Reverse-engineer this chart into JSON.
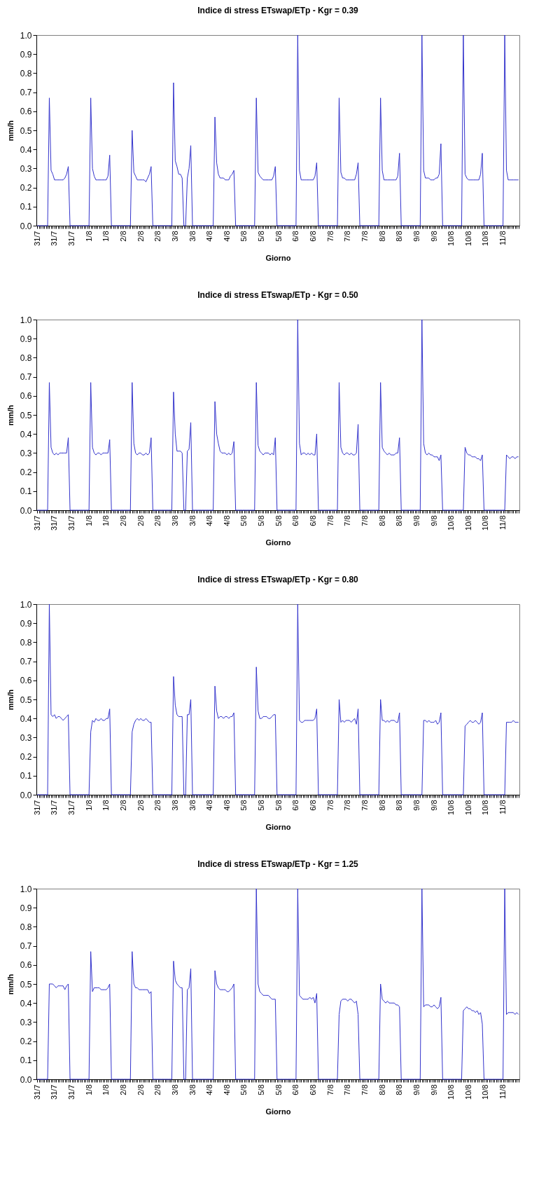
{
  "chart_data": [
    {
      "type": "line",
      "title": "Indice di stress ETswap/ETp - Kgr = 0.39",
      "xlabel": "Giorno",
      "ylabel": "mm/h",
      "ylim": [
        0,
        1
      ],
      "yticks": [
        {
          "value": 0,
          "label": "0.0"
        },
        {
          "value": 0.1,
          "label": "0.1"
        },
        {
          "value": 0.2,
          "label": "0.2"
        },
        {
          "value": 0.3,
          "label": "0.3"
        },
        {
          "value": 0.4,
          "label": "0.4"
        },
        {
          "value": 0.5,
          "label": "0.5"
        },
        {
          "value": 0.6,
          "label": "0.6"
        },
        {
          "value": 0.7,
          "label": "0.7"
        },
        {
          "value": 0.8,
          "label": "0.8"
        },
        {
          "value": 0.9,
          "label": "0.9"
        },
        {
          "value": 1,
          "label": "1.0"
        }
      ],
      "categories": [
        "31/7",
        null,
        null,
        null,
        null,
        null,
        null,
        null,
        null,
        null,
        "31/7",
        null,
        null,
        null,
        null,
        null,
        null,
        null,
        null,
        null,
        "31/7",
        null,
        null,
        null,
        null,
        null,
        null,
        null,
        null,
        null,
        "1/8",
        null,
        null,
        null,
        null,
        null,
        null,
        null,
        null,
        null,
        "1/8",
        null,
        null,
        null,
        null,
        null,
        null,
        null,
        null,
        null,
        "2/8",
        null,
        null,
        null,
        null,
        null,
        null,
        null,
        null,
        null,
        "2/8",
        null,
        null,
        null,
        null,
        null,
        null,
        null,
        null,
        null,
        "2/8",
        null,
        null,
        null,
        null,
        null,
        null,
        null,
        null,
        null,
        "3/8",
        null,
        null,
        null,
        null,
        null,
        null,
        null,
        null,
        null,
        "3/8",
        null,
        null,
        null,
        null,
        null,
        null,
        null,
        null,
        null,
        "4/8",
        null,
        null,
        null,
        null,
        null,
        null,
        null,
        null,
        null,
        "4/8",
        null,
        null,
        null,
        null,
        null,
        null,
        null,
        null,
        null,
        "5/8",
        null,
        null,
        null,
        null,
        null,
        null,
        null,
        null,
        null,
        "5/8",
        null,
        null,
        null,
        null,
        null,
        null,
        null,
        null,
        null,
        "5/8",
        null,
        null,
        null,
        null,
        null,
        null,
        null,
        null,
        null,
        "6/8",
        null,
        null,
        null,
        null,
        null,
        null,
        null,
        null,
        null,
        "6/8",
        null,
        null,
        null,
        null,
        null,
        null,
        null,
        null,
        null,
        "7/8",
        null,
        null,
        null,
        null,
        null,
        null,
        null,
        null,
        null,
        "7/8",
        null,
        null,
        null,
        null,
        null,
        null,
        null,
        null,
        null,
        "7/8",
        null,
        null,
        null,
        null,
        null,
        null,
        null,
        null,
        null,
        "8/8",
        null,
        null,
        null,
        null,
        null,
        null,
        null,
        null,
        null,
        "8/8",
        null,
        null,
        null,
        null,
        null,
        null,
        null,
        null,
        null,
        "9/8",
        null,
        null,
        null,
        null,
        null,
        null,
        null,
        null,
        null,
        "9/8",
        null,
        null,
        null,
        null,
        null,
        null,
        null,
        null,
        null,
        "10/8",
        null,
        null,
        null,
        null,
        null,
        null,
        null,
        null,
        null,
        "10/8",
        null,
        null,
        null,
        null,
        null,
        null,
        null,
        null,
        null,
        "10/8",
        null,
        null,
        null,
        null,
        null,
        null,
        null,
        null,
        null,
        "11/8",
        null,
        null,
        null,
        null,
        null,
        null,
        null,
        null,
        null
      ],
      "series": [
        {
          "color": "#3333cc",
          "values": [
            0,
            0,
            0,
            0,
            0,
            0,
            0,
            0.67,
            0.29,
            0.27,
            0.24,
            0.24,
            0.24,
            0.24,
            0.24,
            0.24,
            0.25,
            0.27,
            0.31,
            0,
            0,
            0,
            0,
            0,
            0,
            0,
            0,
            0,
            0,
            0,
            0,
            0.67,
            0.3,
            0.26,
            0.24,
            0.24,
            0.24,
            0.24,
            0.24,
            0.24,
            0.24,
            0.26,
            0.37,
            0,
            0,
            0,
            0,
            0,
            0,
            0,
            0,
            0,
            0,
            0,
            0,
            0.5,
            0.28,
            0.26,
            0.24,
            0.24,
            0.24,
            0.24,
            0.24,
            0.23,
            0.25,
            0.27,
            0.31,
            0,
            0,
            0,
            0,
            0,
            0,
            0,
            0,
            0,
            0,
            0,
            0,
            0.75,
            0.34,
            0.31,
            0.27,
            0.27,
            0.25,
            0,
            0,
            0.25,
            0.3,
            0.42,
            0,
            0,
            0,
            0,
            0,
            0,
            0,
            0,
            0,
            0,
            0,
            0,
            0,
            0.57,
            0.33,
            0.27,
            0.25,
            0.25,
            0.25,
            0.24,
            0.24,
            0.24,
            0.26,
            0.27,
            0.29,
            0,
            0,
            0,
            0,
            0,
            0,
            0,
            0,
            0,
            0,
            0,
            0,
            0.67,
            0.28,
            0.26,
            0.25,
            0.24,
            0.24,
            0.24,
            0.24,
            0.24,
            0.24,
            0.26,
            0.31,
            0,
            0,
            0,
            0,
            0,
            0,
            0,
            0,
            0,
            0,
            0,
            0,
            1,
            0.29,
            0.24,
            0.24,
            0.24,
            0.24,
            0.24,
            0.24,
            0.24,
            0.24,
            0.26,
            0.33,
            0,
            0,
            0,
            0,
            0,
            0,
            0,
            0,
            0,
            0,
            0,
            0,
            0.67,
            0.28,
            0.25,
            0.25,
            0.24,
            0.24,
            0.24,
            0.24,
            0.24,
            0.24,
            0.27,
            0.33,
            0,
            0,
            0,
            0,
            0,
            0,
            0,
            0,
            0,
            0,
            0,
            0,
            0.67,
            0.29,
            0.24,
            0.24,
            0.24,
            0.24,
            0.24,
            0.24,
            0.24,
            0.24,
            0.26,
            0.38,
            0,
            0,
            0,
            0,
            0,
            0,
            0,
            0,
            0,
            0,
            0,
            0,
            1,
            0.29,
            0.25,
            0.25,
            0.25,
            0.24,
            0.24,
            0.24,
            0.25,
            0.25,
            0.27,
            0.43,
            0,
            0,
            0,
            0,
            0,
            0,
            0,
            0,
            0,
            0,
            0,
            0,
            1,
            0.27,
            0.25,
            0.24,
            0.24,
            0.24,
            0.24,
            0.24,
            0.24,
            0.24,
            0.27,
            0.38,
            0,
            0,
            0,
            0,
            0,
            0,
            0,
            0,
            0,
            0,
            0,
            0,
            1,
            0.29,
            0.24,
            0.24,
            0.24,
            0.24,
            0.24,
            0.24,
            0.24
          ]
        }
      ]
    },
    {
      "type": "line",
      "title": "Indice di stress ETswap/ETp - Kgr = 0.50",
      "xlabel": "Giorno",
      "ylabel": "mm/h",
      "ylim": [
        0,
        1
      ],
      "yticks": [
        {
          "value": 0,
          "label": "0.0"
        },
        {
          "value": 0.1,
          "label": "0.1"
        },
        {
          "value": 0.2,
          "label": "0.2"
        },
        {
          "value": 0.3,
          "label": "0.3"
        },
        {
          "value": 0.4,
          "label": "0.4"
        },
        {
          "value": 0.5,
          "label": "0.5"
        },
        {
          "value": 0.6,
          "label": "0.6"
        },
        {
          "value": 0.7,
          "label": "0.7"
        },
        {
          "value": 0.8,
          "label": "0.8"
        },
        {
          "value": 0.9,
          "label": "0.9"
        },
        {
          "value": 1,
          "label": "1.0"
        }
      ],
      "categories": [
        "31/7",
        null,
        null,
        null,
        null,
        null,
        null,
        null,
        null,
        null,
        "31/7",
        null,
        null,
        null,
        null,
        null,
        null,
        null,
        null,
        null,
        "31/7",
        null,
        null,
        null,
        null,
        null,
        null,
        null,
        null,
        null,
        "1/8",
        null,
        null,
        null,
        null,
        null,
        null,
        null,
        null,
        null,
        "1/8",
        null,
        null,
        null,
        null,
        null,
        null,
        null,
        null,
        null,
        "2/8",
        null,
        null,
        null,
        null,
        null,
        null,
        null,
        null,
        null,
        "2/8",
        null,
        null,
        null,
        null,
        null,
        null,
        null,
        null,
        null,
        "2/8",
        null,
        null,
        null,
        null,
        null,
        null,
        null,
        null,
        null,
        "3/8",
        null,
        null,
        null,
        null,
        null,
        null,
        null,
        null,
        null,
        "3/8",
        null,
        null,
        null,
        null,
        null,
        null,
        null,
        null,
        null,
        "4/8",
        null,
        null,
        null,
        null,
        null,
        null,
        null,
        null,
        null,
        "4/8",
        null,
        null,
        null,
        null,
        null,
        null,
        null,
        null,
        null,
        "5/8",
        null,
        null,
        null,
        null,
        null,
        null,
        null,
        null,
        null,
        "5/8",
        null,
        null,
        null,
        null,
        null,
        null,
        null,
        null,
        null,
        "5/8",
        null,
        null,
        null,
        null,
        null,
        null,
        null,
        null,
        null,
        "6/8",
        null,
        null,
        null,
        null,
        null,
        null,
        null,
        null,
        null,
        "6/8",
        null,
        null,
        null,
        null,
        null,
        null,
        null,
        null,
        null,
        "7/8",
        null,
        null,
        null,
        null,
        null,
        null,
        null,
        null,
        null,
        "7/8",
        null,
        null,
        null,
        null,
        null,
        null,
        null,
        null,
        null,
        "7/8",
        null,
        null,
        null,
        null,
        null,
        null,
        null,
        null,
        null,
        "8/8",
        null,
        null,
        null,
        null,
        null,
        null,
        null,
        null,
        null,
        "8/8",
        null,
        null,
        null,
        null,
        null,
        null,
        null,
        null,
        null,
        "9/8",
        null,
        null,
        null,
        null,
        null,
        null,
        null,
        null,
        null,
        "9/8",
        null,
        null,
        null,
        null,
        null,
        null,
        null,
        null,
        null,
        "10/8",
        null,
        null,
        null,
        null,
        null,
        null,
        null,
        null,
        null,
        "10/8",
        null,
        null,
        null,
        null,
        null,
        null,
        null,
        null,
        null,
        "10/8",
        null,
        null,
        null,
        null,
        null,
        null,
        null,
        null,
        null,
        "11/8",
        null,
        null,
        null,
        null,
        null,
        null,
        null,
        null,
        null
      ],
      "series": [
        {
          "color": "#3333cc",
          "values": [
            0,
            0,
            0,
            0,
            0,
            0,
            0,
            0.67,
            0.33,
            0.3,
            0.29,
            0.3,
            0.29,
            0.3,
            0.3,
            0.3,
            0.3,
            0.3,
            0.38,
            0,
            0,
            0,
            0,
            0,
            0,
            0,
            0,
            0,
            0,
            0,
            0,
            0.67,
            0.33,
            0.3,
            0.29,
            0.3,
            0.3,
            0.29,
            0.3,
            0.3,
            0.3,
            0.3,
            0.37,
            0,
            0,
            0,
            0,
            0,
            0,
            0,
            0,
            0,
            0,
            0,
            0,
            0.67,
            0.35,
            0.3,
            0.29,
            0.3,
            0.3,
            0.29,
            0.29,
            0.3,
            0.29,
            0.3,
            0.38,
            0,
            0,
            0,
            0,
            0,
            0,
            0,
            0,
            0,
            0,
            0,
            0,
            0.62,
            0.4,
            0.31,
            0.31,
            0.31,
            0.3,
            0,
            0,
            0.31,
            0.32,
            0.46,
            0,
            0,
            0,
            0,
            0,
            0,
            0,
            0,
            0,
            0,
            0,
            0,
            0,
            0.57,
            0.4,
            0.35,
            0.31,
            0.3,
            0.3,
            0.3,
            0.29,
            0.3,
            0.29,
            0.3,
            0.36,
            0,
            0,
            0,
            0,
            0,
            0,
            0,
            0,
            0,
            0,
            0,
            0,
            0.67,
            0.34,
            0.31,
            0.3,
            0.29,
            0.3,
            0.3,
            0.3,
            0.29,
            0.3,
            0.29,
            0.38,
            0,
            0,
            0,
            0,
            0,
            0,
            0,
            0,
            0,
            0,
            0,
            0,
            1,
            0.35,
            0.29,
            0.3,
            0.3,
            0.29,
            0.3,
            0.29,
            0.3,
            0.29,
            0.29,
            0.4,
            0,
            0,
            0,
            0,
            0,
            0,
            0,
            0,
            0,
            0,
            0,
            0,
            0.67,
            0.33,
            0.3,
            0.29,
            0.3,
            0.3,
            0.29,
            0.3,
            0.29,
            0.29,
            0.3,
            0.45,
            0,
            0,
            0,
            0,
            0,
            0,
            0,
            0,
            0,
            0,
            0,
            0,
            0.67,
            0.33,
            0.31,
            0.3,
            0.29,
            0.3,
            0.29,
            0.29,
            0.29,
            0.3,
            0.3,
            0.38,
            0,
            0,
            0,
            0,
            0,
            0,
            0,
            0,
            0,
            0,
            0,
            0,
            1,
            0.35,
            0.3,
            0.29,
            0.3,
            0.29,
            0.29,
            0.28,
            0.28,
            0.28,
            0.26,
            0.29,
            0,
            0,
            0,
            0,
            0,
            0,
            0,
            0,
            0,
            0,
            0,
            0,
            0,
            0.33,
            0.3,
            0.29,
            0.29,
            0.28,
            0.28,
            0.28,
            0.27,
            0.27,
            0.26,
            0.29,
            0,
            0,
            0,
            0,
            0,
            0,
            0,
            0,
            0,
            0,
            0,
            0,
            0,
            0.29,
            0.28,
            0.27,
            0.28,
            0.28,
            0.27,
            0.28,
            0.28
          ]
        }
      ]
    },
    {
      "type": "line",
      "title": "Indice di stress ETswap/ETp - Kgr = 0.80",
      "xlabel": "Giorno",
      "ylabel": "mm/h",
      "ylim": [
        0,
        1
      ],
      "yticks": [
        {
          "value": 0,
          "label": "0.0"
        },
        {
          "value": 0.1,
          "label": "0.1"
        },
        {
          "value": 0.2,
          "label": "0.2"
        },
        {
          "value": 0.3,
          "label": "0.3"
        },
        {
          "value": 0.4,
          "label": "0.4"
        },
        {
          "value": 0.5,
          "label": "0.5"
        },
        {
          "value": 0.6,
          "label": "0.6"
        },
        {
          "value": 0.7,
          "label": "0.7"
        },
        {
          "value": 0.8,
          "label": "0.8"
        },
        {
          "value": 0.9,
          "label": "0.9"
        },
        {
          "value": 1,
          "label": "1.0"
        }
      ],
      "categories": [
        "31/7",
        null,
        null,
        null,
        null,
        null,
        null,
        null,
        null,
        null,
        "31/7",
        null,
        null,
        null,
        null,
        null,
        null,
        null,
        null,
        null,
        "31/7",
        null,
        null,
        null,
        null,
        null,
        null,
        null,
        null,
        null,
        "1/8",
        null,
        null,
        null,
        null,
        null,
        null,
        null,
        null,
        null,
        "1/8",
        null,
        null,
        null,
        null,
        null,
        null,
        null,
        null,
        null,
        "2/8",
        null,
        null,
        null,
        null,
        null,
        null,
        null,
        null,
        null,
        "2/8",
        null,
        null,
        null,
        null,
        null,
        null,
        null,
        null,
        null,
        "2/8",
        null,
        null,
        null,
        null,
        null,
        null,
        null,
        null,
        null,
        "3/8",
        null,
        null,
        null,
        null,
        null,
        null,
        null,
        null,
        null,
        "3/8",
        null,
        null,
        null,
        null,
        null,
        null,
        null,
        null,
        null,
        "4/8",
        null,
        null,
        null,
        null,
        null,
        null,
        null,
        null,
        null,
        "4/8",
        null,
        null,
        null,
        null,
        null,
        null,
        null,
        null,
        null,
        "5/8",
        null,
        null,
        null,
        null,
        null,
        null,
        null,
        null,
        null,
        "5/8",
        null,
        null,
        null,
        null,
        null,
        null,
        null,
        null,
        null,
        "5/8",
        null,
        null,
        null,
        null,
        null,
        null,
        null,
        null,
        null,
        "6/8",
        null,
        null,
        null,
        null,
        null,
        null,
        null,
        null,
        null,
        "6/8",
        null,
        null,
        null,
        null,
        null,
        null,
        null,
        null,
        null,
        "7/8",
        null,
        null,
        null,
        null,
        null,
        null,
        null,
        null,
        null,
        "7/8",
        null,
        null,
        null,
        null,
        null,
        null,
        null,
        null,
        null,
        "7/8",
        null,
        null,
        null,
        null,
        null,
        null,
        null,
        null,
        null,
        "8/8",
        null,
        null,
        null,
        null,
        null,
        null,
        null,
        null,
        null,
        "8/8",
        null,
        null,
        null,
        null,
        null,
        null,
        null,
        null,
        null,
        "9/8",
        null,
        null,
        null,
        null,
        null,
        null,
        null,
        null,
        null,
        "9/8",
        null,
        null,
        null,
        null,
        null,
        null,
        null,
        null,
        null,
        "10/8",
        null,
        null,
        null,
        null,
        null,
        null,
        null,
        null,
        null,
        "10/8",
        null,
        null,
        null,
        null,
        null,
        null,
        null,
        null,
        null,
        "10/8",
        null,
        null,
        null,
        null,
        null,
        null,
        null,
        null,
        null,
        "11/8",
        null,
        null,
        null,
        null,
        null,
        null,
        null,
        null,
        null
      ],
      "series": [
        {
          "color": "#3333cc",
          "values": [
            0,
            0,
            0,
            0,
            0,
            0,
            0,
            1,
            0.42,
            0.41,
            0.42,
            0.4,
            0.41,
            0.41,
            0.4,
            0.39,
            0.4,
            0.41,
            0.42,
            0,
            0,
            0,
            0,
            0,
            0,
            0,
            0,
            0,
            0,
            0,
            0,
            0.33,
            0.39,
            0.38,
            0.4,
            0.39,
            0.39,
            0.4,
            0.39,
            0.39,
            0.4,
            0.4,
            0.45,
            0,
            0,
            0,
            0,
            0,
            0,
            0,
            0,
            0,
            0,
            0,
            0,
            0.33,
            0.37,
            0.39,
            0.4,
            0.39,
            0.4,
            0.39,
            0.39,
            0.4,
            0.39,
            0.38,
            0.38,
            0,
            0,
            0,
            0,
            0,
            0,
            0,
            0,
            0,
            0,
            0,
            0,
            0.62,
            0.47,
            0.42,
            0.41,
            0.41,
            0.41,
            0,
            0,
            0.42,
            0.42,
            0.5,
            0,
            0,
            0,
            0,
            0,
            0,
            0,
            0,
            0,
            0,
            0,
            0,
            0,
            0.57,
            0.44,
            0.4,
            0.41,
            0.41,
            0.4,
            0.41,
            0.41,
            0.4,
            0.41,
            0.41,
            0.43,
            0,
            0,
            0,
            0,
            0,
            0,
            0,
            0,
            0,
            0,
            0,
            0,
            0.67,
            0.44,
            0.4,
            0.4,
            0.41,
            0.41,
            0.41,
            0.4,
            0.4,
            0.41,
            0.42,
            0.42,
            0,
            0,
            0,
            0,
            0,
            0,
            0,
            0,
            0,
            0,
            0,
            0,
            1,
            0.39,
            0.38,
            0.38,
            0.39,
            0.39,
            0.39,
            0.39,
            0.39,
            0.39,
            0.4,
            0.45,
            0,
            0,
            0,
            0,
            0,
            0,
            0,
            0,
            0,
            0,
            0,
            0,
            0.5,
            0.38,
            0.39,
            0.38,
            0.39,
            0.39,
            0.39,
            0.38,
            0.39,
            0.4,
            0.37,
            0.45,
            0,
            0,
            0,
            0,
            0,
            0,
            0,
            0,
            0,
            0,
            0,
            0,
            0.5,
            0.39,
            0.39,
            0.38,
            0.39,
            0.38,
            0.39,
            0.39,
            0.39,
            0.38,
            0.38,
            0.43,
            0,
            0,
            0,
            0,
            0,
            0,
            0,
            0,
            0,
            0,
            0,
            0,
            0,
            0.39,
            0.39,
            0.38,
            0.39,
            0.38,
            0.38,
            0.38,
            0.39,
            0.37,
            0.38,
            0.43,
            0,
            0,
            0,
            0,
            0,
            0,
            0,
            0,
            0,
            0,
            0,
            0,
            0,
            0.36,
            0.37,
            0.38,
            0.39,
            0.38,
            0.38,
            0.39,
            0.38,
            0.37,
            0.38,
            0.43,
            0,
            0,
            0,
            0,
            0,
            0,
            0,
            0,
            0,
            0,
            0,
            0,
            0,
            0.38,
            0.38,
            0.38,
            0.38,
            0.39,
            0.38,
            0.38,
            0.38
          ]
        }
      ]
    },
    {
      "type": "line",
      "title": "Indice di stress ETswap/ETp - Kgr = 1.25",
      "xlabel": "Giorno",
      "ylabel": "mm/h",
      "ylim": [
        0,
        1
      ],
      "yticks": [
        {
          "value": 0,
          "label": "0.0"
        },
        {
          "value": 0.1,
          "label": "0.1"
        },
        {
          "value": 0.2,
          "label": "0.2"
        },
        {
          "value": 0.3,
          "label": "0.3"
        },
        {
          "value": 0.4,
          "label": "0.4"
        },
        {
          "value": 0.5,
          "label": "0.5"
        },
        {
          "value": 0.6,
          "label": "0.6"
        },
        {
          "value": 0.7,
          "label": "0.7"
        },
        {
          "value": 0.8,
          "label": "0.8"
        },
        {
          "value": 0.9,
          "label": "0.9"
        },
        {
          "value": 1,
          "label": "1.0"
        }
      ],
      "categories": [
        "31/7",
        null,
        null,
        null,
        null,
        null,
        null,
        null,
        null,
        null,
        "31/7",
        null,
        null,
        null,
        null,
        null,
        null,
        null,
        null,
        null,
        "31/7",
        null,
        null,
        null,
        null,
        null,
        null,
        null,
        null,
        null,
        "1/8",
        null,
        null,
        null,
        null,
        null,
        null,
        null,
        null,
        null,
        "1/8",
        null,
        null,
        null,
        null,
        null,
        null,
        null,
        null,
        null,
        "2/8",
        null,
        null,
        null,
        null,
        null,
        null,
        null,
        null,
        null,
        "2/8",
        null,
        null,
        null,
        null,
        null,
        null,
        null,
        null,
        null,
        "2/8",
        null,
        null,
        null,
        null,
        null,
        null,
        null,
        null,
        null,
        "3/8",
        null,
        null,
        null,
        null,
        null,
        null,
        null,
        null,
        null,
        "3/8",
        null,
        null,
        null,
        null,
        null,
        null,
        null,
        null,
        null,
        "4/8",
        null,
        null,
        null,
        null,
        null,
        null,
        null,
        null,
        null,
        "4/8",
        null,
        null,
        null,
        null,
        null,
        null,
        null,
        null,
        null,
        "5/8",
        null,
        null,
        null,
        null,
        null,
        null,
        null,
        null,
        null,
        "5/8",
        null,
        null,
        null,
        null,
        null,
        null,
        null,
        null,
        null,
        "5/8",
        null,
        null,
        null,
        null,
        null,
        null,
        null,
        null,
        null,
        "6/8",
        null,
        null,
        null,
        null,
        null,
        null,
        null,
        null,
        null,
        "6/8",
        null,
        null,
        null,
        null,
        null,
        null,
        null,
        null,
        null,
        "7/8",
        null,
        null,
        null,
        null,
        null,
        null,
        null,
        null,
        null,
        "7/8",
        null,
        null,
        null,
        null,
        null,
        null,
        null,
        null,
        null,
        "7/8",
        null,
        null,
        null,
        null,
        null,
        null,
        null,
        null,
        null,
        "8/8",
        null,
        null,
        null,
        null,
        null,
        null,
        null,
        null,
        null,
        "8/8",
        null,
        null,
        null,
        null,
        null,
        null,
        null,
        null,
        null,
        "9/8",
        null,
        null,
        null,
        null,
        null,
        null,
        null,
        null,
        null,
        "9/8",
        null,
        null,
        null,
        null,
        null,
        null,
        null,
        null,
        null,
        "10/8",
        null,
        null,
        null,
        null,
        null,
        null,
        null,
        null,
        null,
        "10/8",
        null,
        null,
        null,
        null,
        null,
        null,
        null,
        null,
        null,
        "10/8",
        null,
        null,
        null,
        null,
        null,
        null,
        null,
        null,
        null,
        "11/8",
        null,
        null,
        null,
        null,
        null,
        null,
        null,
        null,
        null
      ],
      "series": [
        {
          "color": "#3333cc",
          "values": [
            0,
            0,
            0,
            0,
            0,
            0,
            0,
            0.5,
            0.5,
            0.5,
            0.49,
            0.48,
            0.49,
            0.49,
            0.49,
            0.49,
            0.47,
            0.49,
            0.5,
            0,
            0,
            0,
            0,
            0,
            0,
            0,
            0,
            0,
            0,
            0,
            0,
            0.67,
            0.46,
            0.48,
            0.48,
            0.48,
            0.48,
            0.47,
            0.47,
            0.47,
            0.47,
            0.48,
            0.5,
            0,
            0,
            0,
            0,
            0,
            0,
            0,
            0,
            0,
            0,
            0,
            0,
            0.67,
            0.5,
            0.48,
            0.48,
            0.47,
            0.47,
            0.47,
            0.47,
            0.47,
            0.47,
            0.45,
            0.46,
            0,
            0,
            0,
            0,
            0,
            0,
            0,
            0,
            0,
            0,
            0,
            0,
            0.62,
            0.52,
            0.5,
            0.49,
            0.48,
            0.48,
            0,
            0,
            0.47,
            0.48,
            0.58,
            0,
            0,
            0,
            0,
            0,
            0,
            0,
            0,
            0,
            0,
            0,
            0,
            0,
            0.57,
            0.5,
            0.48,
            0.47,
            0.47,
            0.47,
            0.47,
            0.46,
            0.46,
            0.47,
            0.48,
            0.5,
            0,
            0,
            0,
            0,
            0,
            0,
            0,
            0,
            0,
            0,
            0,
            0,
            1,
            0.5,
            0.46,
            0.45,
            0.44,
            0.44,
            0.44,
            0.44,
            0.43,
            0.42,
            0.42,
            0.42,
            0,
            0,
            0,
            0,
            0,
            0,
            0,
            0,
            0,
            0,
            0,
            0,
            1,
            0.44,
            0.43,
            0.42,
            0.42,
            0.42,
            0.42,
            0.43,
            0.42,
            0.43,
            0.4,
            0.45,
            0,
            0,
            0,
            0,
            0,
            0,
            0,
            0,
            0,
            0,
            0,
            0,
            0.34,
            0.41,
            0.42,
            0.42,
            0.42,
            0.41,
            0.42,
            0.42,
            0.41,
            0.4,
            0.41,
            0.34,
            0,
            0,
            0,
            0,
            0,
            0,
            0,
            0,
            0,
            0,
            0,
            0,
            0.5,
            0.42,
            0.41,
            0.4,
            0.41,
            0.4,
            0.4,
            0.4,
            0.4,
            0.39,
            0.39,
            0.38,
            0,
            0,
            0,
            0,
            0,
            0,
            0,
            0,
            0,
            0,
            0,
            0,
            1,
            0.38,
            0.39,
            0.39,
            0.39,
            0.38,
            0.38,
            0.39,
            0.38,
            0.37,
            0.38,
            0.43,
            0,
            0,
            0,
            0,
            0,
            0,
            0,
            0,
            0,
            0,
            0,
            0,
            0.36,
            0.37,
            0.38,
            0.37,
            0.37,
            0.36,
            0.36,
            0.35,
            0.36,
            0.34,
            0.35,
            0.29,
            0,
            0,
            0,
            0,
            0,
            0,
            0,
            0,
            0,
            0,
            0,
            0,
            1,
            0.34,
            0.35,
            0.35,
            0.35,
            0.35,
            0.34,
            0.35,
            0.34
          ]
        }
      ]
    }
  ]
}
